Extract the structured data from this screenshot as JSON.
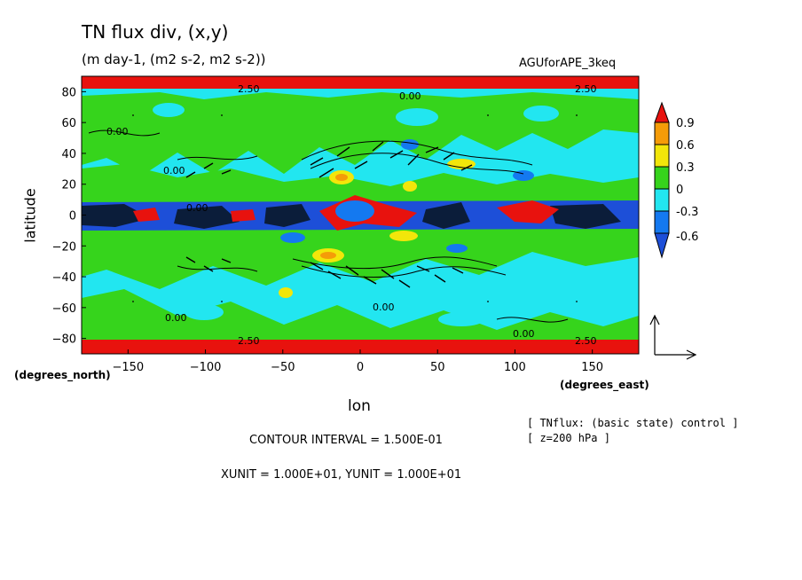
{
  "chart_data": {
    "type": "heatmap",
    "title": "TN flux div, (x,y)",
    "subtitle": "(m day-1, (m2 s-2, m2 s-2))",
    "dataset": "AGUforAPE_3keq",
    "xlabel": "lon",
    "ylabel": "latitude",
    "x_unit": "(degrees_east)",
    "y_unit": "(degrees_north)",
    "xlim": [
      -180,
      180
    ],
    "ylim": [
      -90,
      90
    ],
    "x_ticks": [
      -150,
      -100,
      -50,
      0,
      50,
      100,
      150
    ],
    "y_ticks": [
      -80,
      -60,
      -40,
      -20,
      0,
      20,
      40,
      60,
      80
    ],
    "colorbar": {
      "levels": [
        0.9,
        0.6,
        0.3,
        0,
        -0.3,
        -0.6
      ],
      "colors": [
        "#e8120e",
        "#f59c08",
        "#f2e60a",
        "#36d41c",
        "#22e6f0",
        "#1479f0",
        "#1d4fd8"
      ]
    },
    "contour_labels": [
      "0.00",
      "2.50"
    ],
    "contour_interval": "CONTOUR INTERVAL = 1.500E-01",
    "vector_units": "XUNIT = 1.000E+01, YUNIT = 1.000E+01",
    "notes": [
      "[ TNflux: (basic state) control ]",
      "[ z=200 hPa ]"
    ]
  }
}
